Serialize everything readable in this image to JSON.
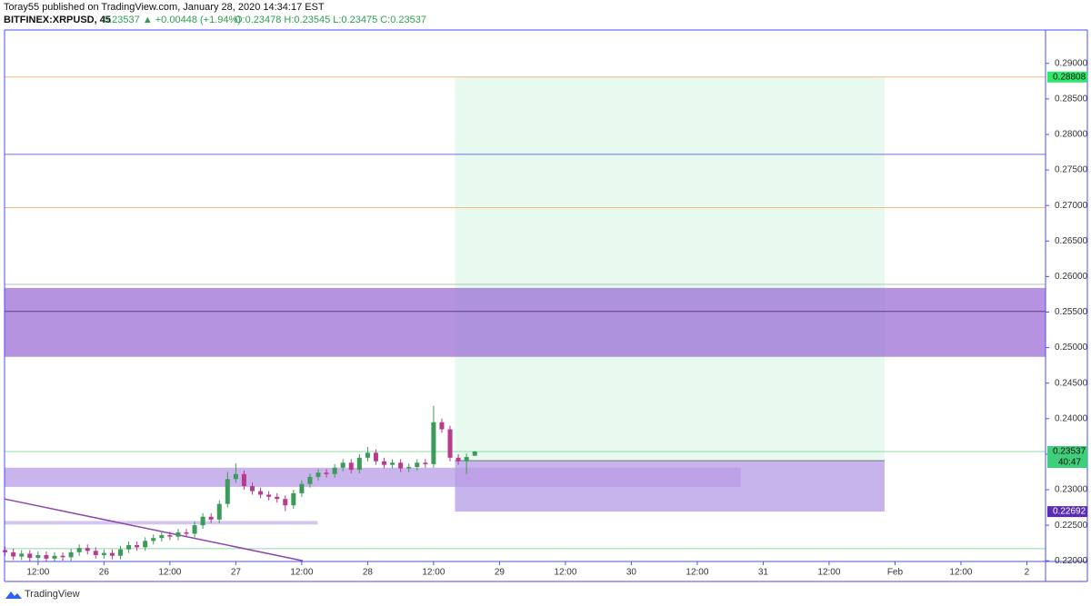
{
  "header": {
    "publisher": "Toray55 published on TradingView.com, January 28, 2020 14:34:17 EST",
    "symbol": "BITFINEX:XRPUSD, 45",
    "change": "0.23537 ▲ +0.00448 (+1.94%)",
    "ohlc": "O:0.23478 H:0.23545 L:0.23475 C:0.23537"
  },
  "footer": {
    "brand": "TradingView"
  },
  "chart_data": {
    "type": "candlestick",
    "up_color": "#3d9b5a",
    "down_color": "#b83b8e",
    "xlim": [
      5.9,
      195.4
    ],
    "ylim": [
      0.2199,
      0.2947
    ],
    "xticks": [
      {
        "value": 12,
        "label": "12:00"
      },
      {
        "value": 24,
        "label": "26"
      },
      {
        "value": 36,
        "label": "12:00"
      },
      {
        "value": 48,
        "label": "27"
      },
      {
        "value": 60,
        "label": "12:00"
      },
      {
        "value": 72,
        "label": "28"
      },
      {
        "value": 84,
        "label": "12:00"
      },
      {
        "value": 96,
        "label": "29"
      },
      {
        "value": 108,
        "label": "12:00"
      },
      {
        "value": 120,
        "label": "30"
      },
      {
        "value": 132,
        "label": "12:00"
      },
      {
        "value": 144,
        "label": "31"
      },
      {
        "value": 156,
        "label": "12:00"
      },
      {
        "value": 168,
        "label": "Feb"
      },
      {
        "value": 180,
        "label": "12:00"
      },
      {
        "value": 192,
        "label": "2"
      }
    ],
    "yticks": [
      {
        "value": 0.22,
        "label": "0.22000"
      },
      {
        "value": 0.225,
        "label": "0.22500"
      },
      {
        "value": 0.23,
        "label": "0.23000"
      },
      {
        "value": 0.235,
        "label": "0.23500"
      },
      {
        "value": 0.24,
        "label": "0.24000"
      },
      {
        "value": 0.245,
        "label": "0.24500"
      },
      {
        "value": 0.25,
        "label": "0.25000"
      },
      {
        "value": 0.255,
        "label": "0.25500"
      },
      {
        "value": 0.26,
        "label": "0.26000"
      },
      {
        "value": 0.265,
        "label": "0.26500"
      },
      {
        "value": 0.27,
        "label": "0.27000"
      },
      {
        "value": 0.275,
        "label": "0.27500"
      },
      {
        "value": 0.28,
        "label": "0.28000"
      },
      {
        "value": 0.285,
        "label": "0.28500"
      },
      {
        "value": 0.29,
        "label": "0.29000"
      }
    ],
    "x": [
      6,
      7.5,
      9,
      10.5,
      12,
      13.5,
      15,
      16.5,
      18,
      19.5,
      21,
      22.5,
      24,
      25.5,
      27,
      28.5,
      30,
      31.5,
      33,
      34.5,
      36,
      37.5,
      39,
      40.5,
      42,
      43.5,
      45,
      46.5,
      48,
      49.5,
      51,
      52.5,
      54,
      55.5,
      57,
      58.5,
      60,
      61.5,
      63,
      64.5,
      66,
      67.5,
      69,
      70.5,
      72,
      73.5,
      75,
      76.5,
      78,
      79.5,
      81,
      82.5,
      84,
      85.5,
      87,
      88.5,
      90,
      91.5
    ],
    "open": [
      0.2215,
      0.2212,
      0.2206,
      0.221,
      0.2204,
      0.2208,
      0.2203,
      0.2207,
      0.2205,
      0.2212,
      0.2218,
      0.2214,
      0.2208,
      0.2211,
      0.2207,
      0.2216,
      0.2222,
      0.2219,
      0.2228,
      0.2232,
      0.2236,
      0.2234,
      0.224,
      0.2238,
      0.225,
      0.2262,
      0.2258,
      0.228,
      0.2315,
      0.2322,
      0.2305,
      0.2298,
      0.2293,
      0.229,
      0.2287,
      0.2278,
      0.2295,
      0.2308,
      0.2318,
      0.2324,
      0.2322,
      0.2331,
      0.2338,
      0.2328,
      0.2345,
      0.2352,
      0.234,
      0.2335,
      0.2338,
      0.233,
      0.2332,
      0.2338,
      0.2336,
      0.2395,
      0.2385,
      0.2345,
      0.234,
      0.23478
    ],
    "high": [
      0.222,
      0.2217,
      0.2215,
      0.2215,
      0.2213,
      0.2213,
      0.2212,
      0.2212,
      0.2217,
      0.2223,
      0.2223,
      0.2219,
      0.2216,
      0.2216,
      0.2221,
      0.2227,
      0.2227,
      0.2233,
      0.2237,
      0.2241,
      0.2241,
      0.2245,
      0.2245,
      0.2255,
      0.2267,
      0.2267,
      0.2285,
      0.2325,
      0.2337,
      0.2327,
      0.231,
      0.2303,
      0.2298,
      0.2295,
      0.2292,
      0.23,
      0.2313,
      0.2323,
      0.2329,
      0.2329,
      0.2336,
      0.2343,
      0.2343,
      0.235,
      0.236,
      0.2357,
      0.2345,
      0.2343,
      0.2343,
      0.2337,
      0.2343,
      0.2343,
      0.2418,
      0.24,
      0.239,
      0.235,
      0.2351,
      0.23545
    ],
    "low": [
      0.2207,
      0.2201,
      0.2201,
      0.2199,
      0.22,
      0.2199,
      0.2199,
      0.22,
      0.22,
      0.2207,
      0.2209,
      0.2203,
      0.2203,
      0.2202,
      0.2202,
      0.2211,
      0.2214,
      0.2214,
      0.2223,
      0.2227,
      0.2229,
      0.2229,
      0.2233,
      0.2233,
      0.2245,
      0.2253,
      0.2253,
      0.2275,
      0.231,
      0.23,
      0.2293,
      0.2288,
      0.2285,
      0.2282,
      0.227,
      0.2273,
      0.229,
      0.2303,
      0.2313,
      0.2317,
      0.2317,
      0.2326,
      0.2323,
      0.2323,
      0.234,
      0.2335,
      0.233,
      0.233,
      0.2325,
      0.2325,
      0.2327,
      0.2331,
      0.2331,
      0.238,
      0.234,
      0.2335,
      0.2322,
      0.23475
    ],
    "close": [
      0.2212,
      0.2206,
      0.221,
      0.2204,
      0.2208,
      0.2203,
      0.2207,
      0.2205,
      0.2212,
      0.2218,
      0.2214,
      0.2208,
      0.2211,
      0.2207,
      0.2216,
      0.2222,
      0.2219,
      0.2228,
      0.2232,
      0.2236,
      0.2234,
      0.224,
      0.2238,
      0.225,
      0.2262,
      0.2258,
      0.228,
      0.2315,
      0.2322,
      0.2305,
      0.2298,
      0.2293,
      0.229,
      0.2287,
      0.2278,
      0.2295,
      0.2308,
      0.2318,
      0.2324,
      0.2322,
      0.2331,
      0.2338,
      0.2328,
      0.2345,
      0.2352,
      0.234,
      0.2335,
      0.2338,
      0.233,
      0.2332,
      0.2338,
      0.2336,
      0.2395,
      0.2385,
      0.2345,
      0.234,
      0.2346,
      0.23537
    ],
    "hlines": [
      {
        "value": 0.28808,
        "color": "#f5b97a"
      },
      {
        "value": 0.2772,
        "color": "#6d6dff"
      },
      {
        "value": 0.2697,
        "color": "#f5b97a"
      },
      {
        "value": 0.2589,
        "color": "#b0bec5"
      },
      {
        "value": 0.2551,
        "color": "#5b3c8c"
      },
      {
        "value": 0.23537,
        "color": "#8fd9a8"
      },
      {
        "value": 0.2217,
        "color": "#8fd9a8"
      }
    ],
    "zones": [
      {
        "top": 0.2584,
        "bottom": 0.2487,
        "x0": 5.9,
        "color": "#9c6fd6"
      },
      {
        "top": 0.2331,
        "bottom": 0.2304,
        "x0": 5.9,
        "x1": 139.9,
        "color": "#b89be6"
      },
      {
        "top": 0.2256,
        "bottom": 0.2251,
        "x0": 5.9,
        "x1": 62.9,
        "color": "#c7b2ec"
      }
    ],
    "trendline": {
      "x": [
        5.9,
        60.2
      ],
      "y": [
        0.2287,
        0.22
      ],
      "color": "#8e44ad"
    },
    "position": {
      "x0": 87.9,
      "x1": 166.1,
      "target": 0.28808,
      "entry": 0.2341,
      "stop": 0.22692,
      "profit_color": "#d9f7e4",
      "loss_color": "#b59be6"
    },
    "price_labels": [
      {
        "value": 0.28808,
        "label": "0.28808",
        "color": "#2ee86a"
      },
      {
        "value": 0.23537,
        "label": "0.23537",
        "color": "#3fcf7a"
      },
      {
        "value": 0.22692,
        "label": "0.22692",
        "color": "#5a2bb5"
      }
    ],
    "countdown": "40:47"
  }
}
